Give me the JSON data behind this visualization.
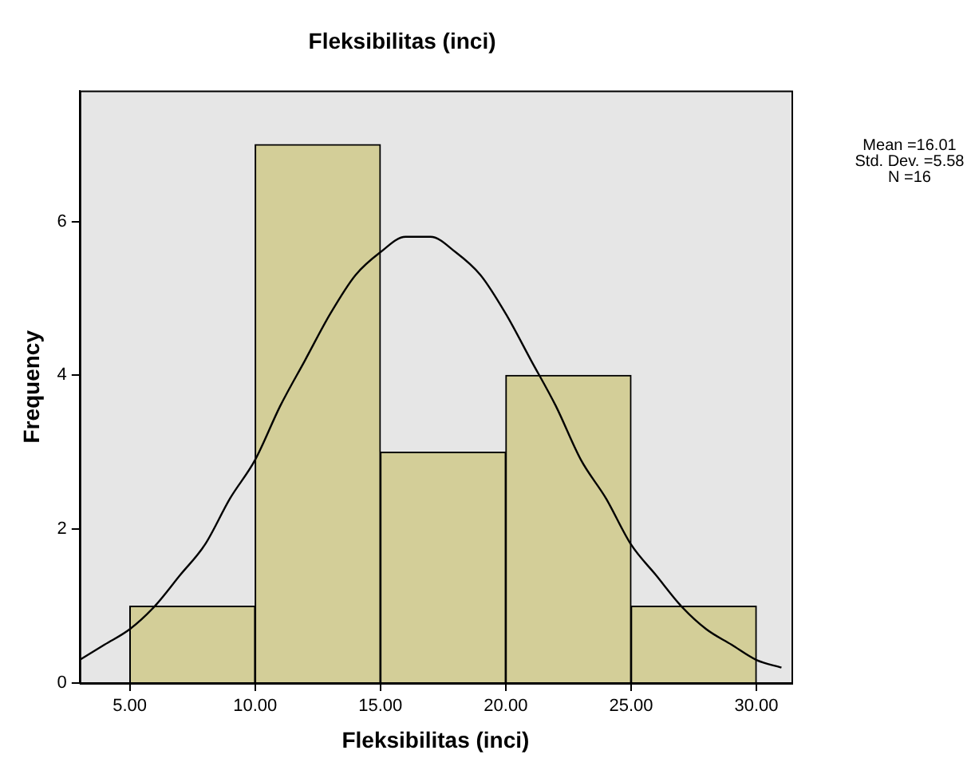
{
  "chart_data": {
    "type": "histogram",
    "title": "Fleksibilitas (inci)",
    "xlabel": "Fleksibilitas (inci)",
    "ylabel": "Frequency",
    "bins": [
      5,
      10,
      15,
      20,
      25,
      30
    ],
    "values": [
      1,
      7,
      3,
      4,
      1
    ],
    "color": "#d3ce98",
    "series": [
      {
        "type": "line",
        "color": "#000000",
        "x": [
          3,
          4,
          5,
          6,
          7,
          8,
          9,
          10,
          11,
          12,
          13,
          14,
          15,
          16,
          17,
          18,
          19,
          20,
          21,
          22,
          23,
          24,
          25,
          26,
          27,
          28,
          29,
          30,
          31
        ],
        "values": [
          0.3,
          0.5,
          0.7,
          1.0,
          1.4,
          1.8,
          2.4,
          2.9,
          3.6,
          4.2,
          4.8,
          5.3,
          5.6,
          5.8,
          5.8,
          5.6,
          5.3,
          4.8,
          4.2,
          3.6,
          2.9,
          2.4,
          1.8,
          1.4,
          1.0,
          0.7,
          0.5,
          0.3,
          0.2
        ]
      }
    ],
    "xlim": [
      3,
      31.4
    ],
    "ylim": [
      0,
      7.7
    ],
    "xticks": [
      {
        "value": 5,
        "label": "5.00"
      },
      {
        "value": 10,
        "label": "10.00"
      },
      {
        "value": 15,
        "label": "15.00"
      },
      {
        "value": 20,
        "label": "20.00"
      },
      {
        "value": 25,
        "label": "25.00"
      },
      {
        "value": 30,
        "label": "30.00"
      }
    ],
    "yticks": [
      0,
      2,
      4,
      6
    ],
    "annotations": [
      "Mean =16.01",
      "Std. Dev. =5.58",
      "N =16"
    ],
    "grid": false,
    "legend": false,
    "marker": "none",
    "line_style": "solid"
  }
}
